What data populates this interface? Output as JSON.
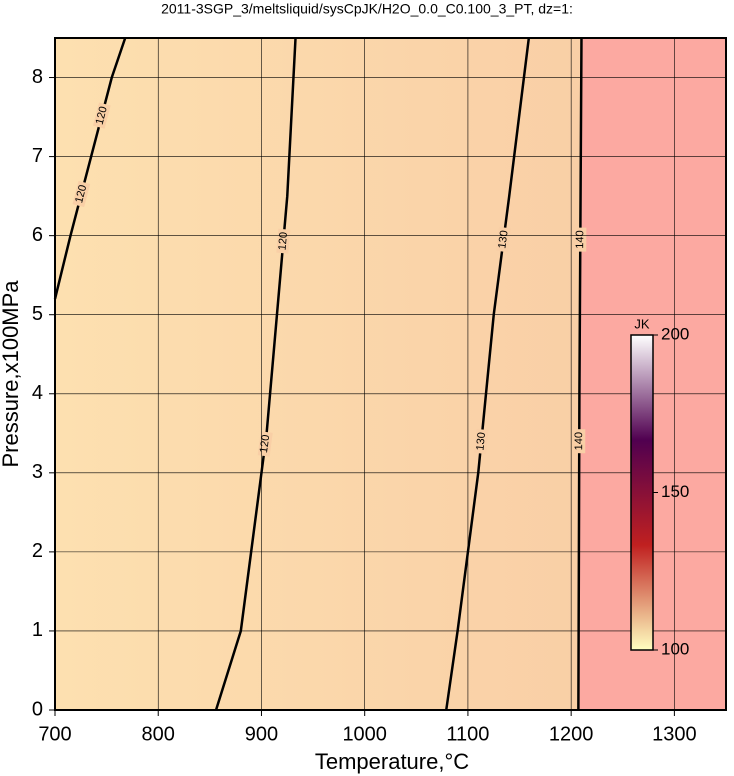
{
  "chart_data": {
    "type": "contour",
    "title": "2011-3SGP_3/meltsliquid/sysCpJK/H2O_0.0_C0.100_3_PT, dz=1:",
    "x_label": "Temperature,°C",
    "y_label": "Pressure,x100MPa",
    "xlim": [
      700,
      1350
    ],
    "ylim": [
      0,
      8.5
    ],
    "xticks": [
      700,
      800,
      900,
      1000,
      1100,
      1200,
      1300
    ],
    "yticks": [
      0,
      1,
      2,
      3,
      4,
      5,
      6,
      7,
      8
    ],
    "grid": true,
    "fill_low_color": "#fde0b0",
    "fill_mid_color": "#f9cfa6",
    "fill_high_color": "#fca9a1",
    "contours": [
      {
        "level": 120,
        "x": [
          700,
          715,
          735,
          755,
          768
        ],
        "y": [
          5.2,
          6,
          7,
          8,
          8.5
        ]
      },
      {
        "level": 120,
        "x": [
          856,
          880,
          895,
          905,
          915,
          925,
          933
        ],
        "y": [
          0,
          1,
          2.5,
          3.5,
          5,
          6.5,
          8.5
        ]
      },
      {
        "level": 130,
        "x": [
          1079,
          1090,
          1100,
          1110,
          1125,
          1140,
          1159
        ],
        "y": [
          0,
          1,
          2,
          3,
          5,
          6.5,
          8.5
        ]
      },
      {
        "level": 140,
        "x": [
          1207,
          1208,
          1210
        ],
        "y": [
          0,
          4,
          8.5
        ]
      }
    ],
    "colorbar": {
      "label": "JK",
      "lim": [
        100,
        200
      ],
      "ticks": [
        100,
        150,
        200
      ],
      "colors": [
        "#ffffc0",
        "#c02020",
        "#500050",
        "#ffffff"
      ]
    }
  }
}
